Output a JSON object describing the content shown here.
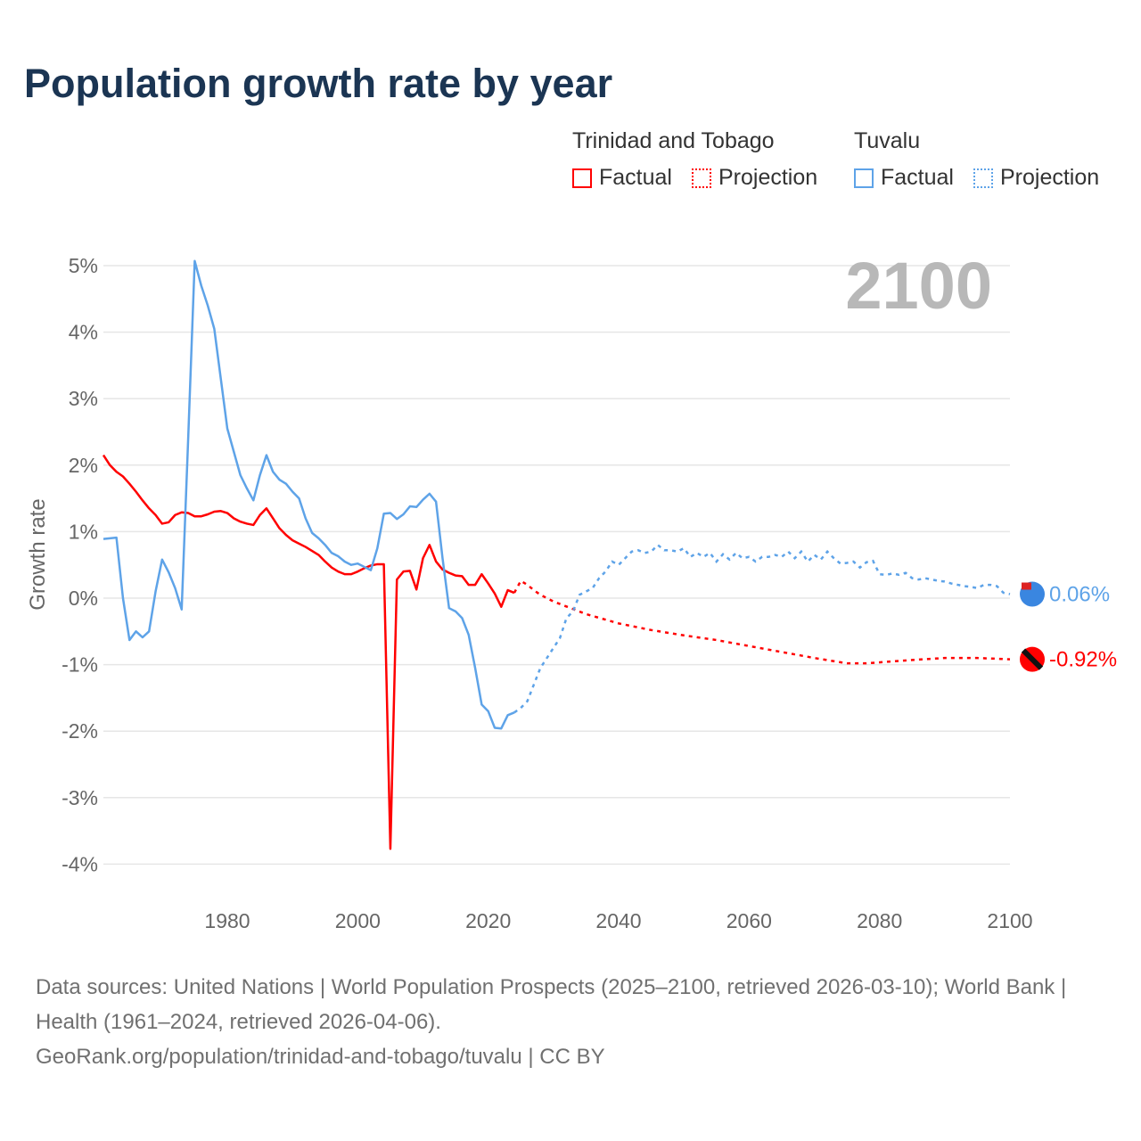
{
  "title": "Population growth rate by year",
  "legend": {
    "groups": [
      {
        "name": "Trinidad and Tobago",
        "color": "#ff0000",
        "factual": "Factual",
        "projection": "Projection"
      },
      {
        "name": "Tuvalu",
        "color": "#5ea3e8",
        "factual": "Factual",
        "projection": "Projection"
      }
    ]
  },
  "current_year": "2100",
  "footer": {
    "sources": "Data sources: United Nations | World Population Prospects (2025–2100, retrieved 2026-03-10); World Bank | Health (1961–2024, retrieved 2026-04-06).",
    "url": "GeoRank.org/population/trinidad-and-tobago/tuvalu | CC BY"
  },
  "chart_data": {
    "type": "line",
    "title": "Population growth rate by year",
    "ylabel": "Growth rate",
    "xlabel": "",
    "xlim": [
      1961,
      2100
    ],
    "ylim": [
      -4,
      5
    ],
    "yticks": [
      "-4%",
      "-3%",
      "-2%",
      "-1%",
      "0%",
      "1%",
      "2%",
      "3%",
      "4%",
      "5%"
    ],
    "ytick_values": [
      -4,
      -3,
      -2,
      -1,
      0,
      1,
      2,
      3,
      4,
      5
    ],
    "xticks": [
      "1980",
      "2000",
      "2020",
      "2040",
      "2060",
      "2080",
      "2100"
    ],
    "xtick_values": [
      1980,
      2000,
      2020,
      2040,
      2060,
      2080,
      2100
    ],
    "grid": true,
    "series": [
      {
        "name": "Trinidad and Tobago",
        "color": "#ff0000",
        "end_label": "-0.92%",
        "factual": {
          "start": 1961,
          "values": [
            2.15,
            2.0,
            1.9,
            1.83,
            1.72,
            1.6,
            1.47,
            1.35,
            1.25,
            1.12,
            1.14,
            1.25,
            1.29,
            1.28,
            1.23,
            1.23,
            1.26,
            1.3,
            1.31,
            1.28,
            1.2,
            1.15,
            1.12,
            1.1,
            1.25,
            1.35,
            1.2,
            1.05,
            0.95,
            0.87,
            0.82,
            0.77,
            0.71,
            0.65,
            0.55,
            0.46,
            0.4,
            0.36,
            0.36,
            0.4,
            0.45,
            0.49,
            0.51,
            0.51,
            -3.77,
            0.28,
            0.4,
            0.41,
            0.13,
            0.6,
            0.8,
            0.55,
            0.43,
            0.38,
            0.34,
            0.33,
            0.2,
            0.2,
            0.36,
            0.22,
            0.07,
            -0.13,
            0.12,
            0.08
          ]
        },
        "projection": {
          "years": [
            2024,
            2025,
            2026,
            2027,
            2028,
            2030,
            2035,
            2040,
            2045,
            2050,
            2055,
            2060,
            2065,
            2070,
            2075,
            2078,
            2085,
            2090,
            2095,
            2100
          ],
          "values": [
            0.08,
            0.26,
            0.2,
            0.12,
            0.05,
            -0.05,
            -0.24,
            -0.38,
            -0.48,
            -0.56,
            -0.63,
            -0.72,
            -0.81,
            -0.9,
            -0.98,
            -0.98,
            -0.93,
            -0.9,
            -0.9,
            -0.92
          ]
        }
      },
      {
        "name": "Tuvalu",
        "color": "#5ea3e8",
        "end_label": "0.06%",
        "factual": {
          "start": 1961,
          "values": [
            0.89,
            0.9,
            0.91,
            0.0,
            -0.63,
            -0.5,
            -0.59,
            -0.5,
            0.1,
            0.58,
            0.39,
            0.15,
            -0.17,
            2.4,
            5.07,
            4.7,
            4.4,
            4.05,
            3.3,
            2.55,
            2.2,
            1.85,
            1.65,
            1.47,
            1.85,
            2.15,
            1.9,
            1.78,
            1.72,
            1.6,
            1.5,
            1.2,
            0.98,
            0.9,
            0.8,
            0.68,
            0.63,
            0.55,
            0.5,
            0.52,
            0.47,
            0.42,
            0.75,
            1.27,
            1.28,
            1.19,
            1.26,
            1.38,
            1.37,
            1.48,
            1.57,
            1.45,
            0.6,
            -0.15,
            -0.2,
            -0.3,
            -0.55,
            -1.05,
            -1.6,
            -1.7,
            -1.95,
            -1.96,
            -1.76,
            -1.72
          ]
        },
        "projection": {
          "start": 2024,
          "values": [
            -1.72,
            -1.65,
            -1.55,
            -1.3,
            -1.05,
            -0.9,
            -0.75,
            -0.6,
            -0.3,
            -0.2,
            0.05,
            0.1,
            0.15,
            0.3,
            0.4,
            0.55,
            0.5,
            0.6,
            0.7,
            0.72,
            0.68,
            0.7,
            0.8,
            0.72,
            0.72,
            0.7,
            0.75,
            0.62,
            0.68,
            0.62,
            0.68,
            0.55,
            0.66,
            0.58,
            0.68,
            0.6,
            0.62,
            0.55,
            0.62,
            0.62,
            0.65,
            0.62,
            0.7,
            0.6,
            0.7,
            0.55,
            0.65,
            0.58,
            0.7,
            0.6,
            0.52,
            0.53,
            0.55,
            0.46,
            0.54,
            0.56,
            0.36,
            0.35,
            0.37,
            0.35,
            0.38,
            0.3,
            0.28,
            0.3,
            0.28,
            0.26,
            0.25,
            0.22,
            0.2,
            0.18,
            0.17,
            0.15,
            0.2,
            0.2,
            0.18,
            0.08,
            0.06
          ]
        }
      }
    ]
  }
}
